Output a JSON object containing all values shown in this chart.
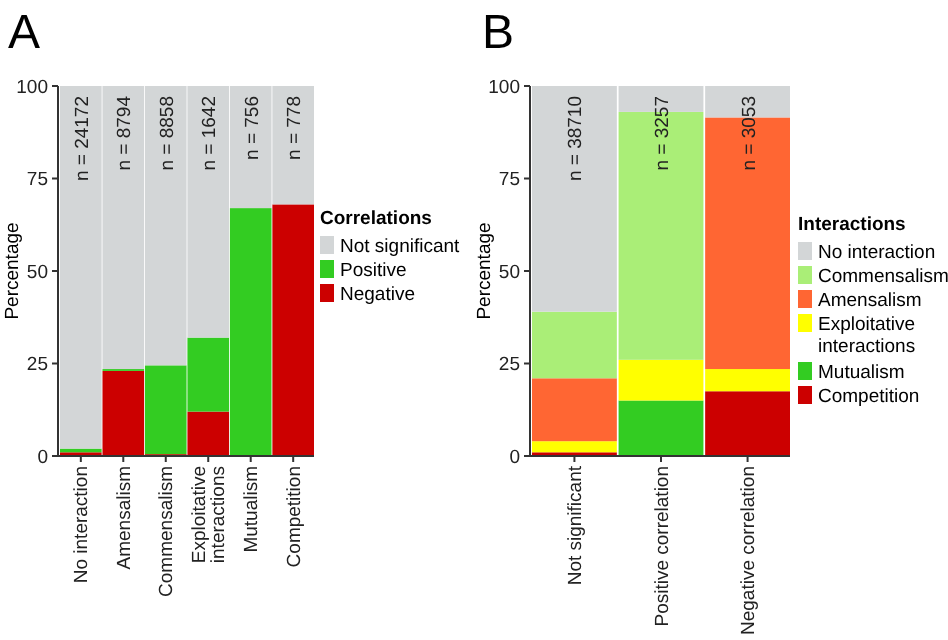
{
  "chart_data": [
    {
      "type": "bar",
      "title": "A",
      "ylabel": "Percentage",
      "legend_title": "Correlations",
      "stacked": true,
      "legend": "right",
      "grid": false,
      "ylim": [
        0,
        100
      ],
      "yticks": [
        0,
        25,
        50,
        75,
        100
      ],
      "categories": [
        "No interaction",
        "Amensalism",
        "Commensalism",
        "Exploitative interactions",
        "Mutualism",
        "Competition"
      ],
      "series": [
        {
          "name": "Negative",
          "color": "#cc0000",
          "values": [
            1,
            23,
            0.5,
            12,
            0,
            68
          ]
        },
        {
          "name": "Positive",
          "color": "#33cc22",
          "values": [
            1,
            0.5,
            24,
            20,
            67,
            0
          ]
        },
        {
          "name": "Not significant",
          "color": "#d3d6d7",
          "values": [
            98,
            76.5,
            75.5,
            68,
            33,
            32
          ]
        }
      ],
      "annotations": [
        "n = 24172",
        "n = 8794",
        "n = 8858",
        "n = 1642",
        "n = 756",
        "n = 778"
      ]
    },
    {
      "type": "bar",
      "title": "B",
      "ylabel": "Percentage",
      "legend_title": "Interactions",
      "stacked": true,
      "legend": "right",
      "grid": false,
      "ylim": [
        0,
        100
      ],
      "yticks": [
        0,
        25,
        50,
        75,
        100
      ],
      "categories": [
        "Not significant",
        "Positive correlation",
        "Negative correlation"
      ],
      "series": [
        {
          "name": "Competition",
          "color": "#cc0000",
          "values": [
            1,
            0,
            17.5
          ]
        },
        {
          "name": "Mutualism",
          "color": "#33cc22",
          "values": [
            0,
            15,
            0
          ]
        },
        {
          "name": "Exploitative interactions",
          "color": "#ffff00",
          "values": [
            3,
            11,
            6
          ]
        },
        {
          "name": "Amensalism",
          "color": "#ff6633",
          "values": [
            17,
            0,
            68
          ]
        },
        {
          "name": "Commensalism",
          "color": "#aaee77",
          "values": [
            18,
            67,
            0
          ]
        },
        {
          "name": "No interaction",
          "color": "#d3d6d7",
          "values": [
            61,
            7,
            8.5
          ]
        }
      ],
      "annotations": [
        "n = 38710",
        "n = 3257",
        "n = 3053"
      ]
    }
  ]
}
